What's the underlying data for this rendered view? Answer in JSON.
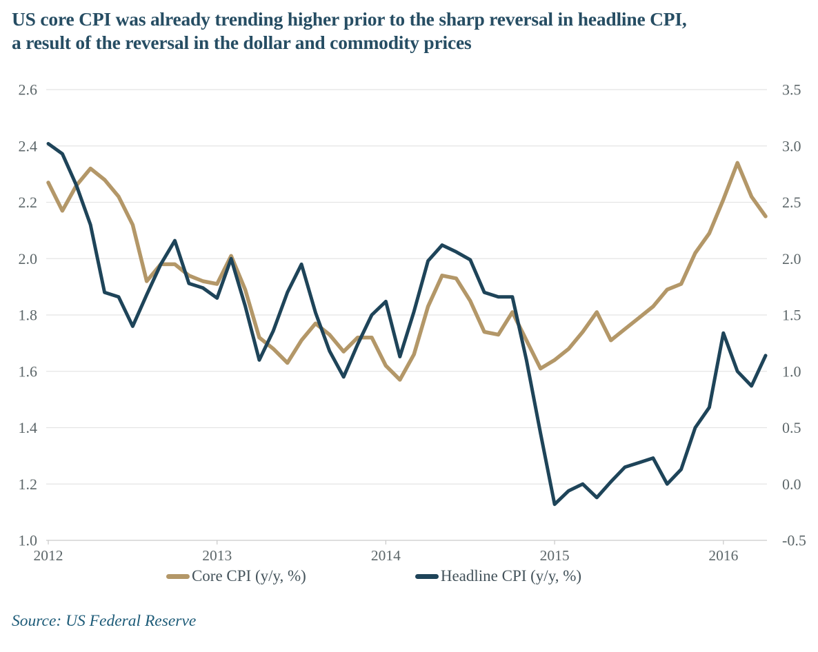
{
  "header": {
    "title_line1": "US core CPI was already trending higher prior to the sharp reversal in headline CPI,",
    "title_line2": "a result of the reversal in the dollar and commodity prices"
  },
  "source": {
    "label": "Source: US Federal Reserve"
  },
  "legend": [
    {
      "label": "Core CPI (y/y, %)",
      "color": "#b39768"
    },
    {
      "label": "Headline CPI (y/y, %)",
      "color": "#1e4459"
    }
  ],
  "colors": {
    "core_line": "#b39768",
    "headline_line": "#1e4459",
    "title_text": "#264d63",
    "axis_text": "#5c6669",
    "gridline": "#e4e4e4",
    "axis_line": "#c9c9c9",
    "source_text": "#1d5b78"
  },
  "chart_data": {
    "type": "line",
    "title": "US core CPI vs headline CPI",
    "x_unit": "month",
    "x_start": "2012-01",
    "x_end": "2016-04",
    "grid": "horizontal",
    "legend_position": "bottom",
    "x_tick_labels": [
      "2012",
      "2013",
      "2014",
      "2015",
      "2016"
    ],
    "months_per_x_tick": 12,
    "left_axis": {
      "min": 1.0,
      "max": 2.6,
      "ticks": [
        "2.6",
        "2.4",
        "2.2",
        "2.0",
        "1.8",
        "1.6",
        "1.4",
        "1.2",
        "1.0"
      ]
    },
    "right_axis": {
      "min": -0.5,
      "max": 3.5,
      "ticks": [
        "3.5",
        "3.0",
        "2.5",
        "2.0",
        "1.5",
        "1.0",
        "0.5",
        "0.0",
        "-0.5"
      ]
    },
    "series": [
      {
        "name": "Core CPI (y/y, %)",
        "key": "core-cpi-line",
        "axis": "left",
        "color": "#b39768",
        "stroke_width": 5.5,
        "values": [
          2.27,
          2.17,
          2.26,
          2.32,
          2.28,
          2.22,
          2.12,
          1.92,
          1.98,
          1.98,
          1.94,
          1.92,
          1.91,
          2.01,
          1.89,
          1.72,
          1.68,
          1.63,
          1.71,
          1.77,
          1.73,
          1.67,
          1.72,
          1.72,
          1.62,
          1.57,
          1.66,
          1.83,
          1.94,
          1.93,
          1.85,
          1.74,
          1.73,
          1.81,
          1.71,
          1.61,
          1.64,
          1.68,
          1.74,
          1.81,
          1.71,
          1.75,
          1.79,
          1.83,
          1.89,
          1.91,
          2.02,
          2.09,
          2.21,
          2.34,
          2.22,
          2.15
        ]
      },
      {
        "name": "Headline CPI (y/y, %)",
        "key": "headline-cpi-line",
        "axis": "right",
        "color": "#1e4459",
        "stroke_width": 5,
        "values": [
          3.02,
          2.93,
          2.65,
          2.3,
          1.7,
          1.66,
          1.4,
          1.68,
          1.95,
          2.16,
          1.78,
          1.74,
          1.65,
          2.0,
          1.58,
          1.1,
          1.36,
          1.7,
          1.95,
          1.52,
          1.18,
          0.95,
          1.24,
          1.5,
          1.62,
          1.13,
          1.53,
          1.98,
          2.12,
          2.06,
          1.99,
          1.7,
          1.66,
          1.66,
          1.1,
          0.45,
          -0.18,
          -0.06,
          0.0,
          -0.12,
          0.02,
          0.15,
          0.19,
          0.23,
          0.0,
          0.13,
          0.5,
          0.68,
          1.34,
          1.0,
          0.87,
          1.14
        ]
      }
    ]
  }
}
